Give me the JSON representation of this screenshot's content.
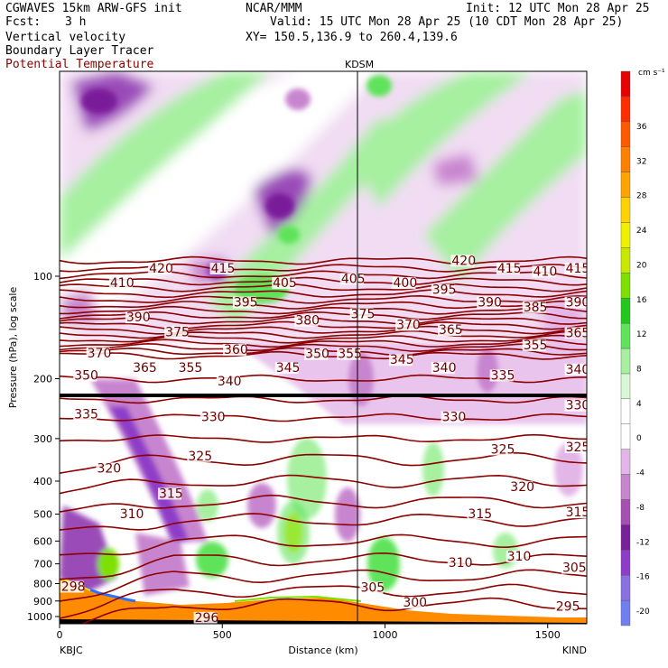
{
  "header": {
    "model": "CGWAVES 15km ARW-GFS init",
    "org": "NCAR/MMM",
    "init": "Init: 12 UTC Mon 28 Apr 25",
    "fcst_label": "Fcst:",
    "fcst_value": "3 h",
    "valid": "Valid: 15 UTC Mon 28 Apr 25 (10 CDT Mon 28 Apr 25)",
    "field1": "Vertical velocity",
    "field2": "Boundary Layer Tracer",
    "field3": "Potential Temperature",
    "xy": "XY= 150.5,136.9 to 260.4,139.6",
    "station_mid": "KDSM",
    "colors": {
      "theta": "#8b0000",
      "field3_text": "#8b0000"
    }
  },
  "chart_data": {
    "type": "heatmap",
    "title": "",
    "xlabel": "Distance (km)",
    "ylabel": "Pressure (hPa), log scale",
    "x_ticks": [
      0,
      500,
      1000,
      1500
    ],
    "x_range": [
      0,
      1620
    ],
    "y_ticks": [
      100,
      200,
      300,
      400,
      500,
      600,
      700,
      800,
      900,
      1000
    ],
    "y_range_hpa": [
      1050,
      25
    ],
    "y_scale": "log",
    "station_left": "KBJC",
    "station_right": "KIND",
    "station_mid": "KDSM",
    "station_mid_km": 925,
    "colorbar": {
      "unit": "cm s⁻¹",
      "ticks": [
        36,
        32,
        28,
        24,
        20,
        16,
        12,
        8,
        4,
        0,
        -4,
        -8,
        -12,
        -16,
        -20
      ],
      "colors": [
        "#6f7fef",
        "#8a6fe0",
        "#8f3cc8",
        "#7a1f9a",
        "#a84fb6",
        "#c885cf",
        "#e3b6e8",
        "#ffffff",
        "#ffffff",
        "#d8f7d4",
        "#a6f0a0",
        "#5fe35a",
        "#23c81e",
        "#7ee000",
        "#c8e800",
        "#f0f000",
        "#ffd200",
        "#ffa500",
        "#ff8000",
        "#ff5a00",
        "#ff2e00",
        "#e80000"
      ]
    },
    "theta_labels": [
      {
        "text": "420",
        "km": 275,
        "p": 97
      },
      {
        "text": "415",
        "km": 465,
        "p": 97
      },
      {
        "text": "410",
        "km": 155,
        "p": 107
      },
      {
        "text": "405",
        "km": 655,
        "p": 107
      },
      {
        "text": "405",
        "km": 865,
        "p": 104
      },
      {
        "text": "400",
        "km": 1025,
        "p": 107
      },
      {
        "text": "420",
        "km": 1205,
        "p": 92
      },
      {
        "text": "415",
        "km": 1345,
        "p": 97
      },
      {
        "text": "410",
        "km": 1455,
        "p": 99
      },
      {
        "text": "415",
        "km": 1555,
        "p": 97
      },
      {
        "text": "395",
        "km": 535,
        "p": 122
      },
      {
        "text": "395",
        "km": 1145,
        "p": 112
      },
      {
        "text": "390",
        "km": 1285,
        "p": 122
      },
      {
        "text": "385",
        "km": 1425,
        "p": 126
      },
      {
        "text": "390",
        "km": 1555,
        "p": 122
      },
      {
        "text": "390",
        "km": 205,
        "p": 135
      },
      {
        "text": "380",
        "km": 725,
        "p": 138
      },
      {
        "text": "375",
        "km": 895,
        "p": 132
      },
      {
        "text": "375",
        "km": 325,
        "p": 149
      },
      {
        "text": "370",
        "km": 1035,
        "p": 142
      },
      {
        "text": "365",
        "km": 1165,
        "p": 147
      },
      {
        "text": "360",
        "km": 505,
        "p": 168
      },
      {
        "text": "355",
        "km": 1425,
        "p": 163
      },
      {
        "text": "365",
        "km": 1555,
        "p": 150
      },
      {
        "text": "370",
        "km": 85,
        "p": 172
      },
      {
        "text": "365",
        "km": 225,
        "p": 190
      },
      {
        "text": "355",
        "km": 365,
        "p": 190
      },
      {
        "text": "350",
        "km": 755,
        "p": 173
      },
      {
        "text": "355",
        "km": 855,
        "p": 173
      },
      {
        "text": "345",
        "km": 665,
        "p": 190
      },
      {
        "text": "345",
        "km": 1015,
        "p": 180
      },
      {
        "text": "340",
        "km": 1145,
        "p": 190
      },
      {
        "text": "335",
        "km": 1325,
        "p": 200
      },
      {
        "text": "340",
        "km": 1555,
        "p": 192
      },
      {
        "text": "350",
        "km": 45,
        "p": 200
      },
      {
        "text": "340",
        "km": 485,
        "p": 208
      },
      {
        "text": "335",
        "km": 45,
        "p": 260
      },
      {
        "text": "330",
        "km": 435,
        "p": 265
      },
      {
        "text": "330",
        "km": 1175,
        "p": 265
      },
      {
        "text": "330",
        "km": 1555,
        "p": 245
      },
      {
        "text": "325",
        "km": 395,
        "p": 345
      },
      {
        "text": "325",
        "km": 1325,
        "p": 330
      },
      {
        "text": "325",
        "km": 1555,
        "p": 325
      },
      {
        "text": "320",
        "km": 115,
        "p": 375
      },
      {
        "text": "320",
        "km": 1385,
        "p": 425
      },
      {
        "text": "315",
        "km": 305,
        "p": 445
      },
      {
        "text": "315",
        "km": 1255,
        "p": 510
      },
      {
        "text": "315",
        "km": 1555,
        "p": 505
      },
      {
        "text": "310",
        "km": 185,
        "p": 510
      },
      {
        "text": "310",
        "km": 1195,
        "p": 710
      },
      {
        "text": "310",
        "km": 1375,
        "p": 680
      },
      {
        "text": "305",
        "km": 1545,
        "p": 735
      },
      {
        "text": "305",
        "km": 925,
        "p": 840
      },
      {
        "text": "300",
        "km": 1055,
        "p": 930
      },
      {
        "text": "295",
        "km": 1525,
        "p": 955
      },
      {
        "text": "296",
        "km": 415,
        "p": 1030
      },
      {
        "text": "298",
        "km": 5,
        "p": 835
      }
    ]
  }
}
